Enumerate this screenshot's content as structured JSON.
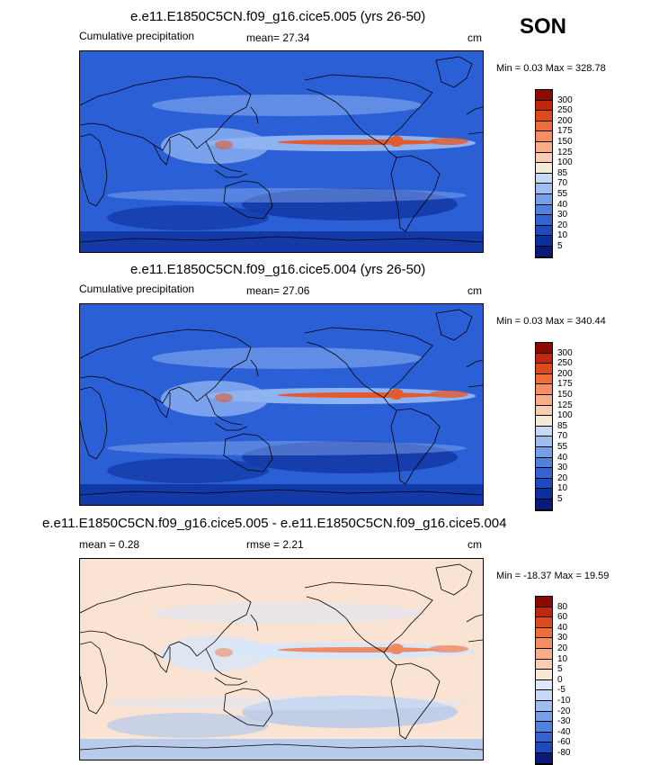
{
  "season": "SON",
  "panels": [
    {
      "title": "e.e11.E1850C5CN.f09_g16.cice5.005 (yrs 26-50)",
      "left_label": "Cumulative precipitation",
      "center_label": "mean=  27.34",
      "units": "cm",
      "minmax": "Min =   0.03 Max = 328.78",
      "colorbar": {
        "labels": [
          "300",
          "250",
          "200",
          "175",
          "150",
          "125",
          "100",
          "85",
          "70",
          "55",
          "40",
          "30",
          "20",
          "10",
          "5"
        ],
        "colors": [
          "#8c0a00",
          "#c1270c",
          "#de4a1c",
          "#ef6c3d",
          "#f58e62",
          "#f8ad88",
          "#f9cdb0",
          "#f3ead9",
          "#c6d9f5",
          "#9fbef0",
          "#779fe8",
          "#5280dd",
          "#3464d2",
          "#1e4abf",
          "#0d2f9c",
          "#0a1a7a"
        ]
      },
      "map_colors": {
        "ocean": "#2a5fd6",
        "band": "#8fb2f0",
        "peak": "#e25a2e",
        "dry": "#0e2f9a"
      }
    },
    {
      "title": "e.e11.E1850C5CN.f09_g16.cice5.004 (yrs 26-50)",
      "left_label": "Cumulative precipitation",
      "center_label": "mean=  27.06",
      "units": "cm",
      "minmax": "Min =   0.03 Max = 340.44",
      "colorbar": {
        "labels": [
          "300",
          "250",
          "200",
          "175",
          "150",
          "125",
          "100",
          "85",
          "70",
          "55",
          "40",
          "30",
          "20",
          "10",
          "5"
        ],
        "colors": [
          "#8c0a00",
          "#c1270c",
          "#de4a1c",
          "#ef6c3d",
          "#f58e62",
          "#f8ad88",
          "#f9cdb0",
          "#f3ead9",
          "#c6d9f5",
          "#9fbef0",
          "#779fe8",
          "#5280dd",
          "#3464d2",
          "#1e4abf",
          "#0d2f9c",
          "#0a1a7a"
        ]
      },
      "map_colors": {
        "ocean": "#2a5fd6",
        "band": "#8fb2f0",
        "peak": "#e25a2e",
        "dry": "#0e2f9a"
      }
    },
    {
      "title": "e.e11.E1850C5CN.f09_g16.cice5.005 - e.e11.E1850C5CN.f09_g16.cice5.004",
      "left_label": "mean =   0.28",
      "center_label": "rmse =   2.21",
      "units": "cm",
      "minmax": "Min = -18.37 Max =  19.59",
      "colorbar": {
        "labels": [
          "80",
          "60",
          "40",
          "30",
          "20",
          "10",
          "5",
          "0",
          "-5",
          "-10",
          "-20",
          "-30",
          "-40",
          "-60",
          "-80"
        ],
        "colors": [
          "#8c0a00",
          "#c1270c",
          "#de4a1c",
          "#ef6c3d",
          "#f58e62",
          "#f8ad88",
          "#f9cdb0",
          "#fbe6d6",
          "#dbe8fa",
          "#c6d9f5",
          "#9fbef0",
          "#779fe8",
          "#5280dd",
          "#3464d2",
          "#1e4abf",
          "#0a1a7a"
        ]
      },
      "map_colors": {
        "ocean": "#fbe3d3",
        "band": "#d8e6fa",
        "peak": "#f08a62",
        "dry": "#a9c4f0"
      }
    }
  ]
}
